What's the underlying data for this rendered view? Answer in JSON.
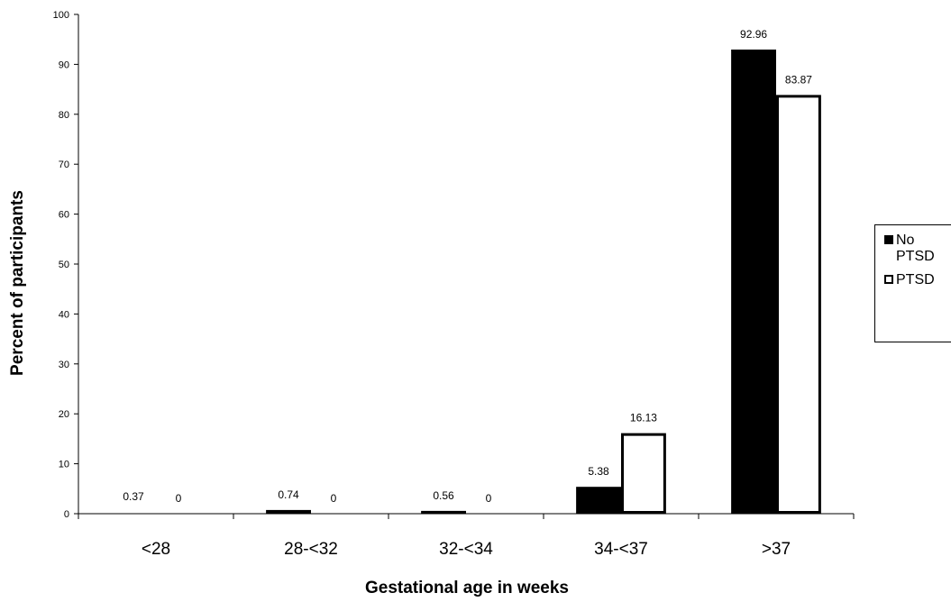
{
  "chart_data": {
    "type": "bar",
    "title": "",
    "xlabel": "Gestational age in weeks",
    "ylabel": "Percent of participants",
    "categories": [
      "<28",
      "28-<32",
      "32-<34",
      "34-<37",
      ">37"
    ],
    "series": [
      {
        "name": "No\nPTSD",
        "color": "#000000",
        "fill": "#000000",
        "values": [
          0.37,
          0.74,
          0.56,
          5.38,
          92.96
        ],
        "labels": [
          "0.37",
          "0.74",
          "0.56",
          "5.38",
          "92.96"
        ]
      },
      {
        "name": "PTSD",
        "color": "#000000",
        "fill": "#ffffff",
        "values": [
          0,
          0,
          0,
          16.13,
          83.87
        ],
        "labels": [
          "0",
          "0",
          "0",
          "16.13",
          "83.87"
        ]
      }
    ],
    "ylim": [
      0,
      100
    ],
    "yticks": [
      "0",
      "10",
      "20",
      "30",
      "40",
      "50",
      "60",
      "70",
      "80",
      "90",
      "100"
    ],
    "grid": false,
    "legend_position": "right"
  }
}
